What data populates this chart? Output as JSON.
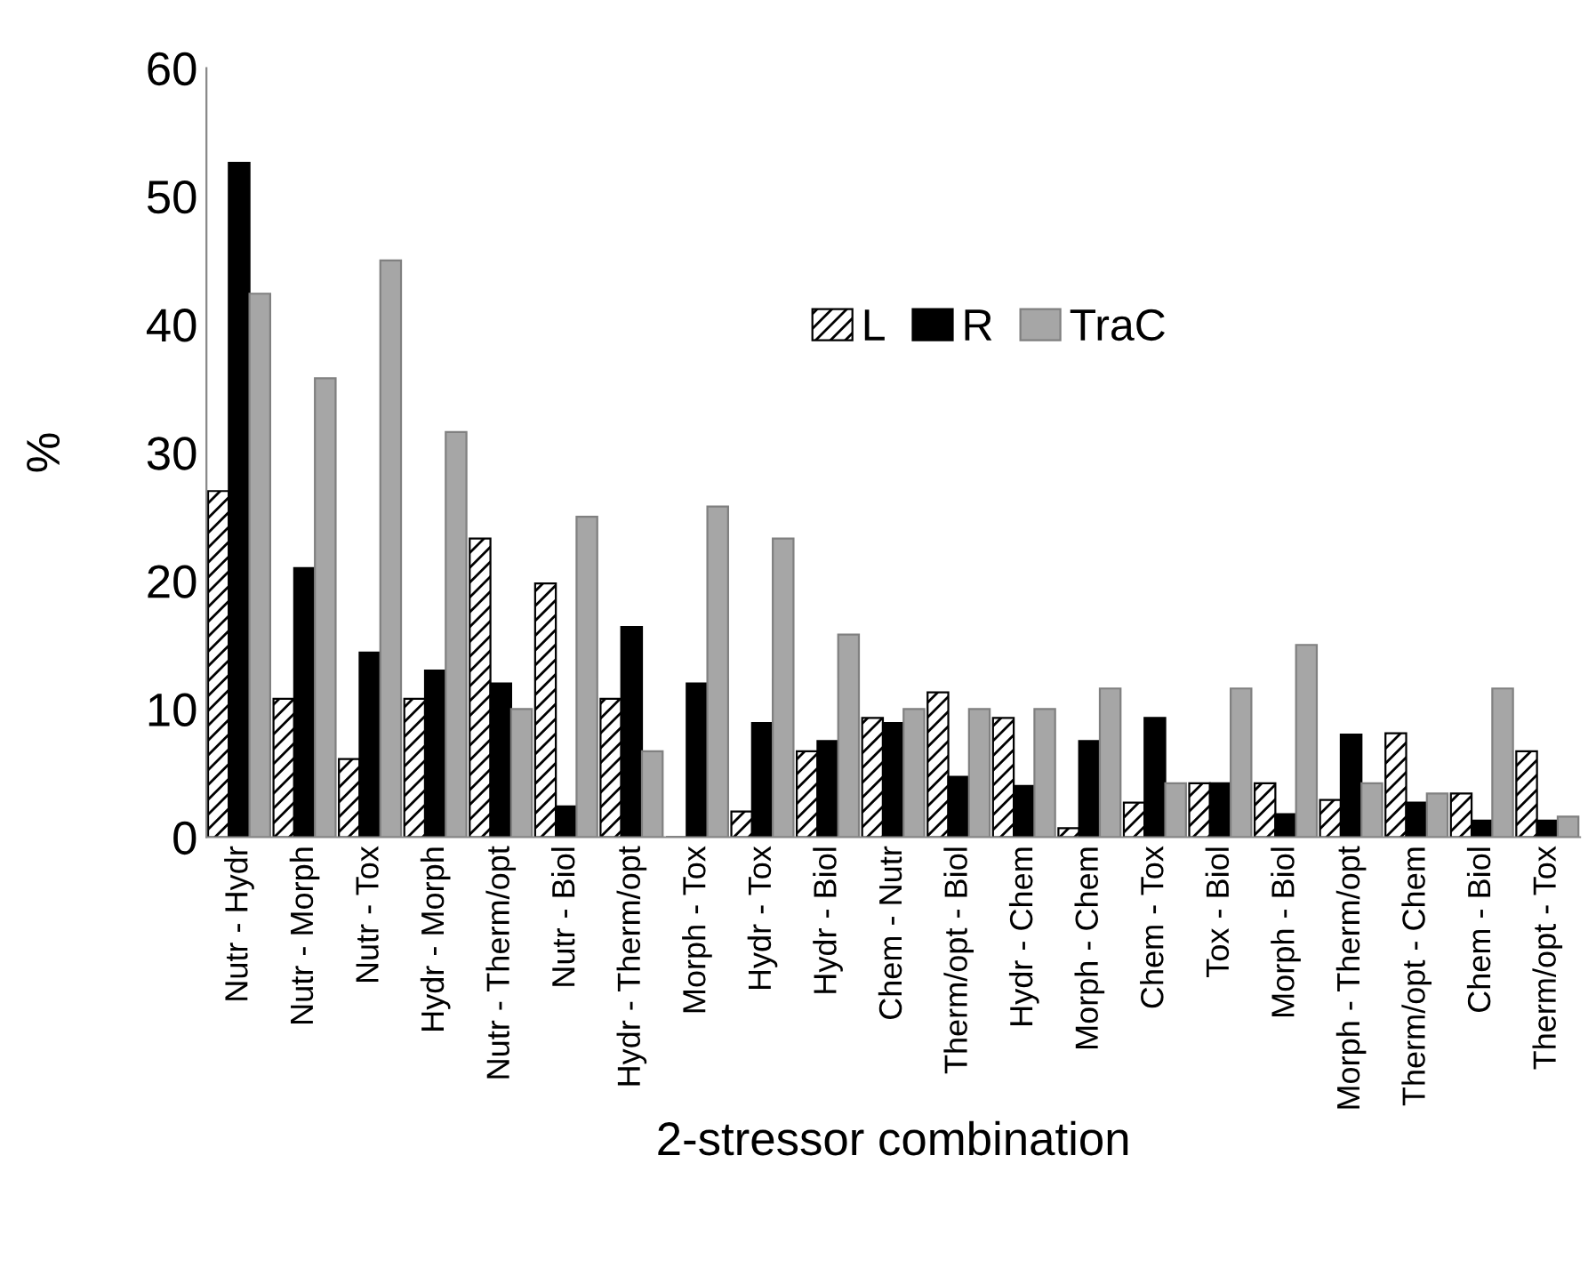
{
  "chart_data": {
    "type": "bar",
    "xlabel": "2-stressor combination",
    "ylabel": "%",
    "categories": [
      "Nutr - Hydr",
      "Nutr - Morph",
      "Nutr - Tox",
      "Hydr - Morph",
      "Nutr - Therm/opt",
      "Nutr - Biol",
      "Hydr - Therm/opt",
      "Morph - Tox",
      "Hydr - Tox",
      "Hydr - Biol",
      "Chem - Nutr",
      "Therm/opt - Biol",
      "Hydr - Chem",
      "Morph - Chem",
      "Chem - Tox",
      "Tox - Biol",
      "Morph - Biol",
      "Morph - Therm/opt",
      "Therm/opt - Chem",
      "Chem - Biol",
      "Therm/opt - Tox"
    ],
    "series": [
      {
        "name": "L",
        "color": "#000000",
        "values": [
          27,
          10.8,
          6.1,
          10.8,
          23.3,
          19.8,
          10.8,
          0,
          2,
          6.7,
          9.3,
          11.3,
          9.3,
          0.7,
          2.7,
          4.2,
          4.2,
          2.9,
          8.1,
          3.4,
          6.7
        ]
      },
      {
        "name": "R",
        "color": "#000000",
        "values": [
          52.6,
          21,
          14.4,
          13,
          12,
          2.4,
          16.4,
          12,
          8.9,
          7.5,
          8.9,
          4.7,
          4,
          7.5,
          9.3,
          4.2,
          1.8,
          8,
          2.7,
          1.3,
          1.3
        ]
      },
      {
        "name": "TraC",
        "color": "#a6a6a6",
        "values": [
          42.4,
          35.8,
          45,
          31.6,
          10,
          25,
          6.7,
          25.8,
          23.3,
          15.8,
          10,
          10,
          10,
          11.6,
          4.2,
          11.6,
          15,
          4.2,
          3.4,
          11.6,
          1.6
        ]
      }
    ],
    "ylim": [
      0,
      60
    ],
    "yticks": [
      0,
      10,
      20,
      30,
      40,
      50,
      60
    ],
    "grid": false,
    "legend": "top"
  }
}
